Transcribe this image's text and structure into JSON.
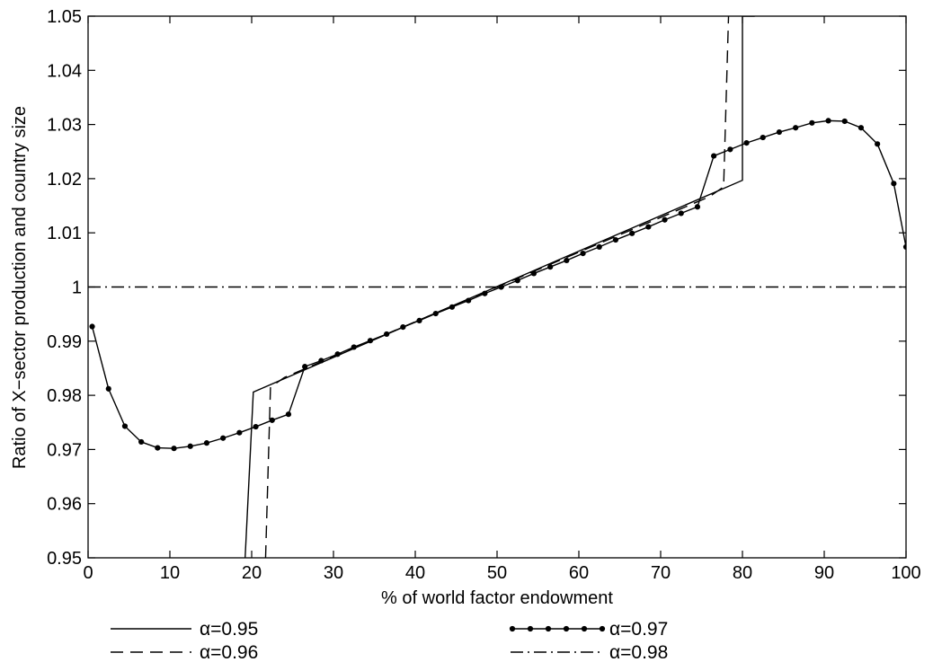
{
  "chart_data": {
    "type": "line",
    "title": "",
    "xlabel": "% of world factor endowment",
    "ylabel": "Ratio of X−sector production and country size",
    "xlim": [
      0,
      100
    ],
    "ylim": [
      0.95,
      1.05
    ],
    "x_ticks": [
      0,
      10,
      20,
      30,
      40,
      50,
      60,
      70,
      80,
      90,
      100
    ],
    "y_ticks": [
      0.95,
      0.96,
      0.97,
      0.98,
      0.99,
      1,
      1.01,
      1.02,
      1.03,
      1.04,
      1.05
    ],
    "x_tick_labels": [
      "0",
      "10",
      "20",
      "30",
      "40",
      "50",
      "60",
      "70",
      "80",
      "90",
      "100"
    ],
    "y_tick_labels": [
      "0.95",
      "0.96",
      "0.97",
      "0.98",
      "0.99",
      "1",
      "1.01",
      "1.02",
      "1.03",
      "1.04",
      "1.05"
    ],
    "grid": false,
    "legend_position": "below",
    "series": [
      {
        "name": "α=0.95",
        "style": "solid",
        "color": "#000000",
        "markers": false,
        "x": [
          19.2,
          20.2,
          80,
          80,
          81.5
        ],
        "y": [
          0.95,
          0.9806,
          1.0197,
          1.05,
          1.05
        ]
      },
      {
        "name": "α=0.96",
        "style": "dashed",
        "color": "#000000",
        "markers": false,
        "x": [
          21.7,
          22.3,
          24,
          50,
          76,
          77.7,
          78.3
        ],
        "y": [
          0.95,
          0.9815,
          0.9833,
          1.0,
          1.0167,
          1.0185,
          1.05
        ]
      },
      {
        "name": "α=0.97",
        "style": "solid",
        "color": "#000000",
        "markers": true,
        "x": [
          0.5,
          2.5,
          4.5,
          6.5,
          8.5,
          10.5,
          12.5,
          14.5,
          16.5,
          18.5,
          20.5,
          22.5,
          24.5,
          26.5,
          28.5,
          30.5,
          32.5,
          34.5,
          36.5,
          38.5,
          40.5,
          42.5,
          44.5,
          46.5,
          48.5,
          50.5,
          52.5,
          54.5,
          56.5,
          58.5,
          60.5,
          62.5,
          64.5,
          66.5,
          68.5,
          70.5,
          72.5,
          74.5,
          76.5,
          78.5,
          80.5,
          82.5,
          84.5,
          86.5,
          88.5,
          90.5,
          92.5,
          94.5,
          96.5,
          98.5,
          100
        ],
        "y": [
          0.9927,
          0.9812,
          0.9743,
          0.9714,
          0.9703,
          0.9702,
          0.9706,
          0.9712,
          0.9721,
          0.9731,
          0.9742,
          0.9754,
          0.9765,
          0.9853,
          0.9864,
          0.9876,
          0.9889,
          0.9901,
          0.9913,
          0.9926,
          0.9938,
          0.9951,
          0.9963,
          0.9975,
          0.9988,
          1.0,
          1.0012,
          1.0025,
          1.0037,
          1.0049,
          1.0062,
          1.0074,
          1.0087,
          1.0099,
          1.0111,
          1.0124,
          1.0136,
          1.0148,
          1.0242,
          1.0254,
          1.0266,
          1.0276,
          1.0286,
          1.0294,
          1.0303,
          1.0307,
          1.0306,
          1.0294,
          1.0264,
          1.0191,
          1.0074
        ]
      },
      {
        "name": "α=0.98",
        "style": "dashdot",
        "color": "#000000",
        "markers": false,
        "x": [
          0,
          100
        ],
        "y": [
          1.0,
          1.0
        ]
      }
    ]
  }
}
